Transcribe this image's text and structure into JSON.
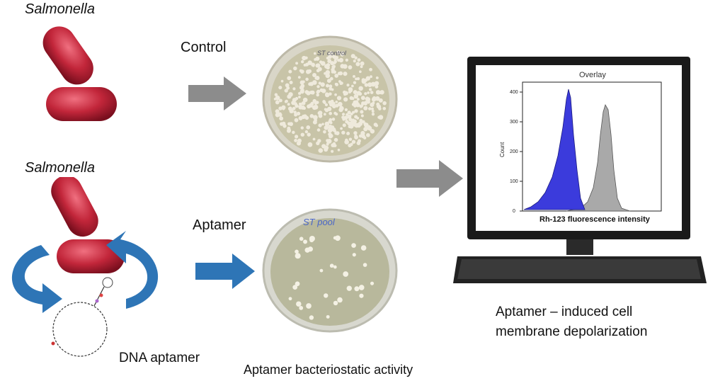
{
  "labels": {
    "salmonella_top": "Salmonella",
    "salmonella_bottom": "Salmonella",
    "control": "Control",
    "aptamer": "Aptamer",
    "dna_aptamer": "DNA aptamer",
    "bacteriostatic": "Aptamer bacteriostatic  activity",
    "depolarization_line1": "Aptamer – induced cell",
    "depolarization_line2": "membrane depolarization"
  },
  "plates": {
    "control_writing": "ST control",
    "aptamer_writing": "ST pool"
  },
  "monitor": {
    "plot_title": "Overlay",
    "ylabel": "Count",
    "xlabel": "Rh-123 fluorescence intensity",
    "y_ticks": [
      "0",
      "100",
      "200",
      "300",
      "400"
    ]
  },
  "colors": {
    "bacteria": "#c2263a",
    "arrow_gray": "#8c8c8c",
    "arrow_blue": "#2e75b6",
    "histogram_blue": "#3b3bdc",
    "histogram_gray": "#a9a9a9"
  }
}
